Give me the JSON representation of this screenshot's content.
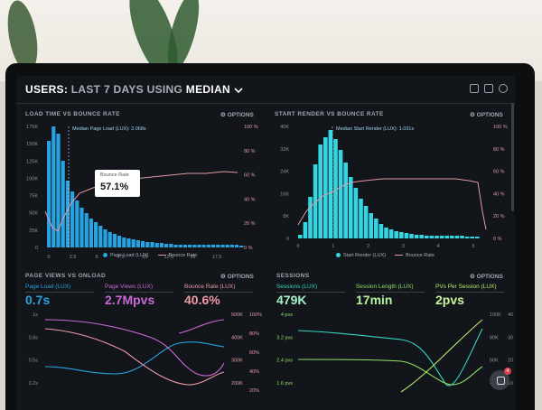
{
  "header": {
    "title_users": "USERS:",
    "title_rest": "LAST 7 DAYS",
    "title_using": "USING",
    "title_median": "MEDIAN"
  },
  "icons": {
    "dropdown": "chevron-down-icon",
    "top": [
      "monitor-icon",
      "image-icon",
      "help-icon"
    ],
    "chat": "chat-icon"
  },
  "panels": {
    "load": {
      "title": "LOAD TIME VS BOUNCE RATE",
      "options": "OPTIONS",
      "median_label": "Median Page Load (LUX): 2.068s",
      "tooltip_label": "Bounce Rate",
      "tooltip_sub": "%",
      "tooltip_value": "57.1%",
      "legend_a": "Page Load (LUX)",
      "legend_b": "Bounce Rate",
      "y_left": [
        "175K",
        "150K",
        "125K",
        "100K",
        "75K",
        "50K",
        "25K",
        "0"
      ],
      "y_right": [
        "100 %",
        "80 %",
        "60 %",
        "40 %",
        "20 %",
        "0 %"
      ],
      "x_ticks": [
        "0",
        "2.5",
        "5",
        "7.5",
        "10",
        "12.5",
        "15",
        "17.5"
      ]
    },
    "render": {
      "title": "START RENDER VS BOUNCE RATE",
      "options": "OPTIONS",
      "median_label": "Median Start Render (LUX): 1.031s",
      "legend_a": "Start Render (LUX)",
      "legend_b": "Bounce Rate",
      "y_left": [
        "40K",
        "32K",
        "24K",
        "16K",
        "8K",
        "0"
      ],
      "y_right": [
        "100 %",
        "80 %",
        "60 %",
        "40 %",
        "20 %",
        "0 %"
      ],
      "x_ticks": [
        "0",
        "1",
        "2",
        "3",
        "4",
        "5"
      ]
    },
    "pageviews": {
      "title": "PAGE VIEWS VS ONLOAD",
      "options": "OPTIONS",
      "metrics": [
        {
          "label": "Page Load (LUX)",
          "value": "0.7s",
          "color": "#27a3e2"
        },
        {
          "label": "Page Views (LUX)",
          "value": "2.7Mpvs",
          "color": "#c86ad6"
        },
        {
          "label": "Bounce Rate (LUX)",
          "value": "40.6%",
          "color": "#f09aa8"
        }
      ],
      "y_left": [
        "1s",
        "0.8s",
        "0.5s",
        "0.2s"
      ],
      "y_mid": [
        "500K",
        "400K",
        "300K",
        "200K"
      ],
      "y_right": [
        "100%",
        "80%",
        "60%",
        "40%",
        "20%"
      ]
    },
    "sessions": {
      "title": "SESSIONS",
      "options": "OPTIONS",
      "metrics": [
        {
          "label": "Sessions (LUX)",
          "value": "479K",
          "color": "#35d6c4"
        },
        {
          "label": "Session Length (LUX)",
          "value": "17min",
          "color": "#8ee06a"
        },
        {
          "label": "PVs Per Session (LUX)",
          "value": "2pvs",
          "color": "#b6ef6e"
        }
      ],
      "y_left": [
        "4 pvs",
        "3.2 pvs",
        "2.4 pvs",
        "1.6 pvs"
      ],
      "y_mid": [
        "100K",
        "80K",
        "60K",
        "40K"
      ],
      "y_right": [
        "40 min",
        "30 m",
        "20 m",
        "10 m"
      ]
    }
  },
  "notifications": {
    "count": "4"
  }
}
